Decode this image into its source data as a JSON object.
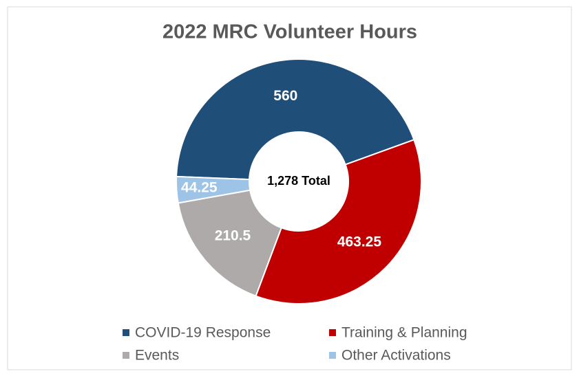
{
  "chart_data": {
    "type": "donut",
    "title": "2022 MRC Volunteer Hours",
    "categories": [
      "COVID-19 Response",
      "Training & Planning",
      "Events",
      "Other Activations"
    ],
    "values": [
      560,
      463.25,
      210.5,
      44.25
    ],
    "colors": [
      "#1f4e79",
      "#c00000",
      "#aeaaaa",
      "#9dc3e6"
    ],
    "center_label": "1,278 Total"
  }
}
